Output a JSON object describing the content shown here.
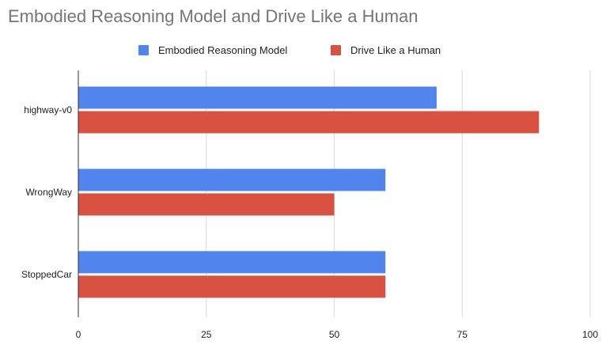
{
  "chart_data": {
    "type": "bar",
    "orientation": "horizontal",
    "title": "Embodied Reasoning Model and Drive Like a Human",
    "categories": [
      "highway-v0",
      "WrongWay",
      "StoppedCar"
    ],
    "series": [
      {
        "name": "Embodied Reasoning Model",
        "color": "#5184EC",
        "values": [
          70,
          60,
          60
        ]
      },
      {
        "name": "Drive Like a Human",
        "color": "#D95140",
        "values": [
          90,
          50,
          60
        ]
      }
    ],
    "xlim": [
      0,
      100
    ],
    "xticks": [
      0,
      25,
      50,
      75,
      100
    ],
    "xlabel": "",
    "ylabel": "",
    "grid": true,
    "legend_position": "top-center"
  }
}
